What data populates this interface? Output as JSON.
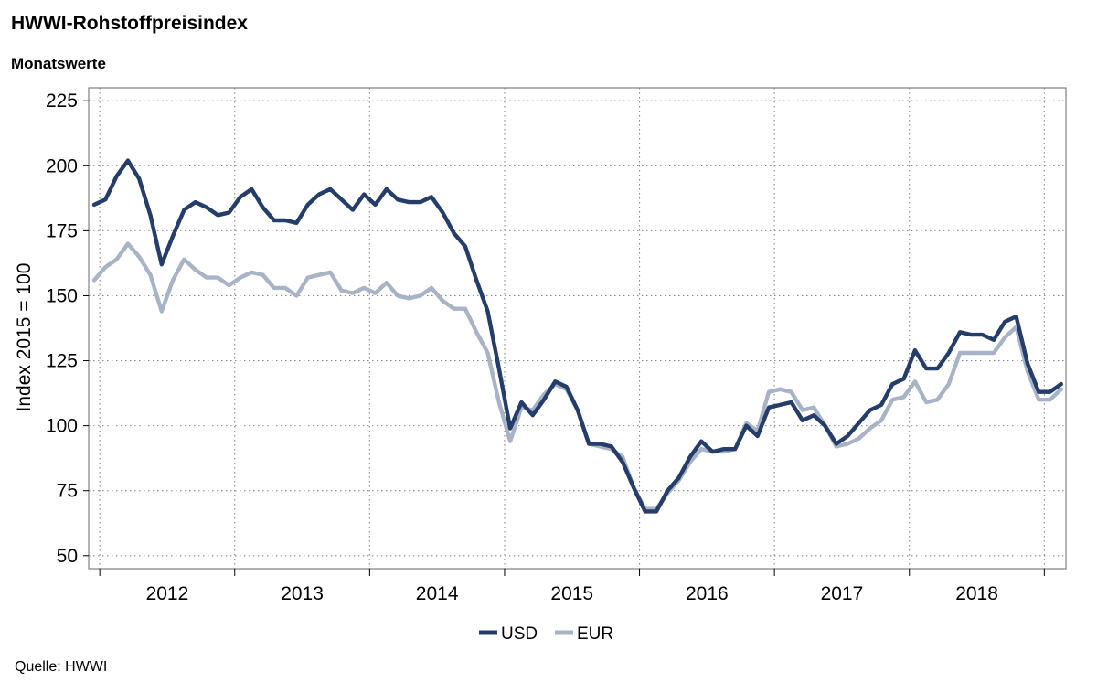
{
  "header": {
    "title": "HWWI-Rohstoffpreisindex",
    "subtitle": "Monatswerte"
  },
  "footer": {
    "source": "Quelle: HWWI"
  },
  "colors": {
    "usd": "#253d6a",
    "eur": "#a8b3c6",
    "grid": "#8c8c8c",
    "frame": "#7f7f7f"
  },
  "chart_data": {
    "type": "line",
    "ylabel": "Index 2015 = 100",
    "xlabel": "",
    "ylim": [
      45,
      230
    ],
    "yticks": [
      50,
      75,
      100,
      125,
      150,
      175,
      200,
      225
    ],
    "xticks": [
      "2012",
      "2013",
      "2014",
      "2015",
      "2016",
      "2017",
      "2018"
    ],
    "x_start": "2011-12",
    "grid": true,
    "legend_position": "bottom",
    "series": [
      {
        "name": "USD",
        "values": [
          185,
          187,
          196,
          202,
          195,
          181,
          162,
          173,
          183,
          186,
          184,
          181,
          182,
          188,
          191,
          184,
          179,
          179,
          178,
          185,
          189,
          191,
          187,
          183,
          189,
          185,
          191,
          187,
          186,
          186,
          188,
          182,
          174,
          169,
          156,
          144,
          122,
          99,
          109,
          104,
          110,
          117,
          115,
          106,
          93,
          93,
          92,
          86,
          76,
          67,
          67,
          75,
          80,
          88,
          94,
          90,
          91,
          91,
          100,
          96,
          107,
          108,
          109,
          102,
          104,
          100,
          93,
          96,
          101,
          106,
          108,
          116,
          118,
          129,
          122,
          122,
          128,
          136,
          135,
          135,
          133,
          140,
          142,
          124,
          113,
          113,
          116
        ]
      },
      {
        "name": "EUR",
        "values": [
          156,
          161,
          164,
          170,
          165,
          158,
          144,
          156,
          164,
          160,
          157,
          157,
          154,
          157,
          159,
          158,
          153,
          153,
          150,
          157,
          158,
          159,
          152,
          151,
          153,
          151,
          155,
          150,
          149,
          150,
          153,
          148,
          145,
          145,
          136,
          128,
          109,
          94,
          107,
          106,
          112,
          116,
          114,
          106,
          93,
          92,
          91,
          88,
          76,
          68,
          68,
          74,
          79,
          86,
          91,
          90,
          90,
          91,
          101,
          98,
          113,
          114,
          113,
          106,
          107,
          100,
          92,
          93,
          95,
          99,
          102,
          110,
          111,
          117,
          109,
          110,
          116,
          128,
          128,
          128,
          128,
          134,
          138,
          121,
          110,
          110,
          114
        ]
      }
    ]
  }
}
